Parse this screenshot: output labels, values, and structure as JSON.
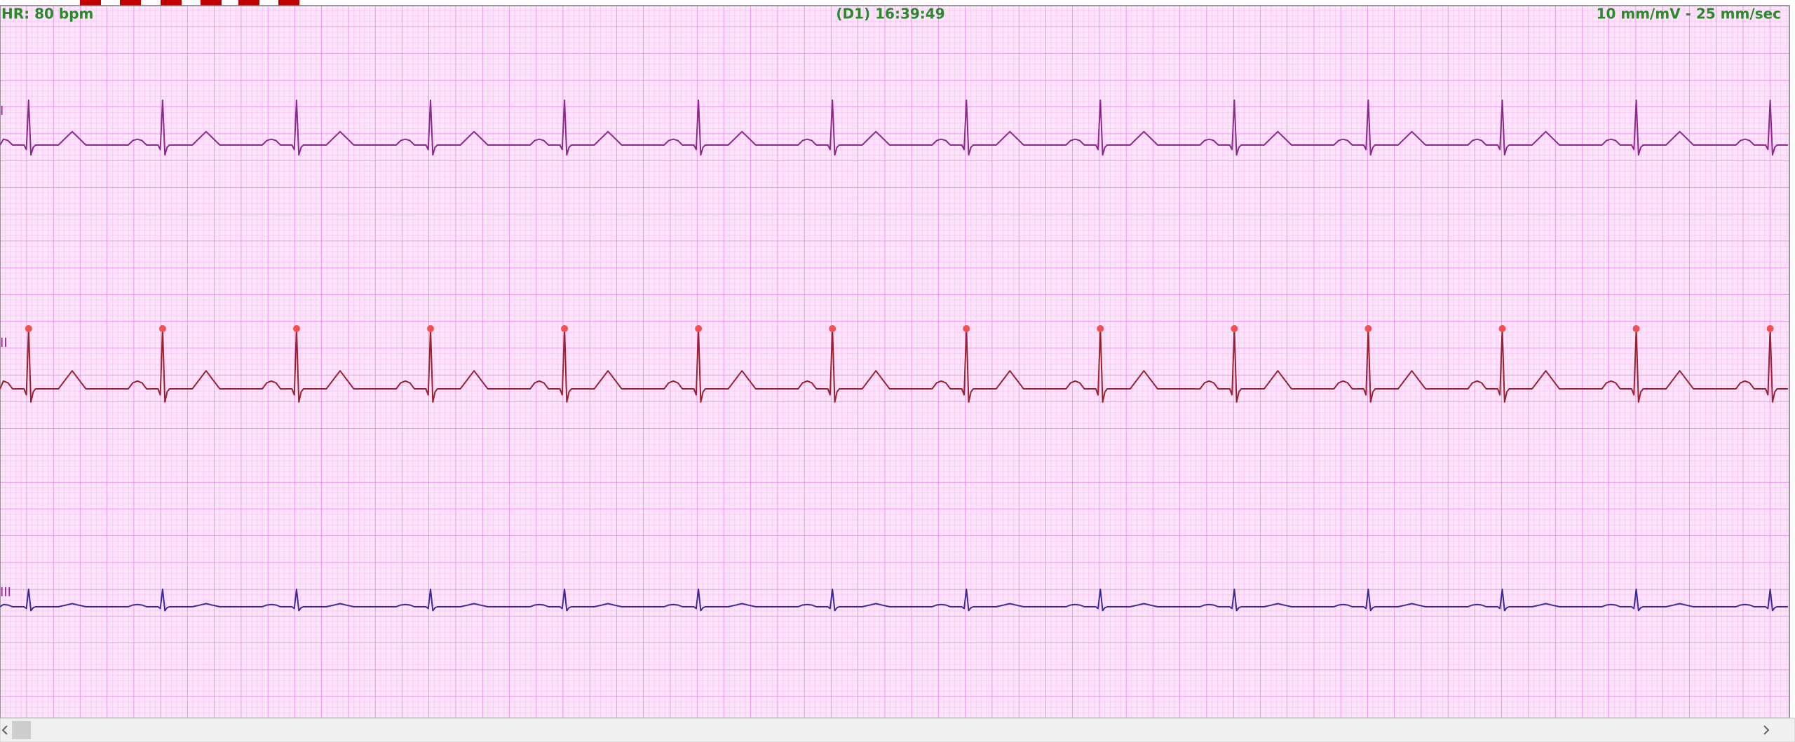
{
  "header": {
    "heart_rate": "HR: 80 bpm",
    "lead_time": "(D1) 16:39:49",
    "scale": "10 mm/mV - 25 mm/sec"
  },
  "leads": [
    {
      "label": "I"
    },
    {
      "label": "II"
    },
    {
      "label": "III"
    }
  ]
}
